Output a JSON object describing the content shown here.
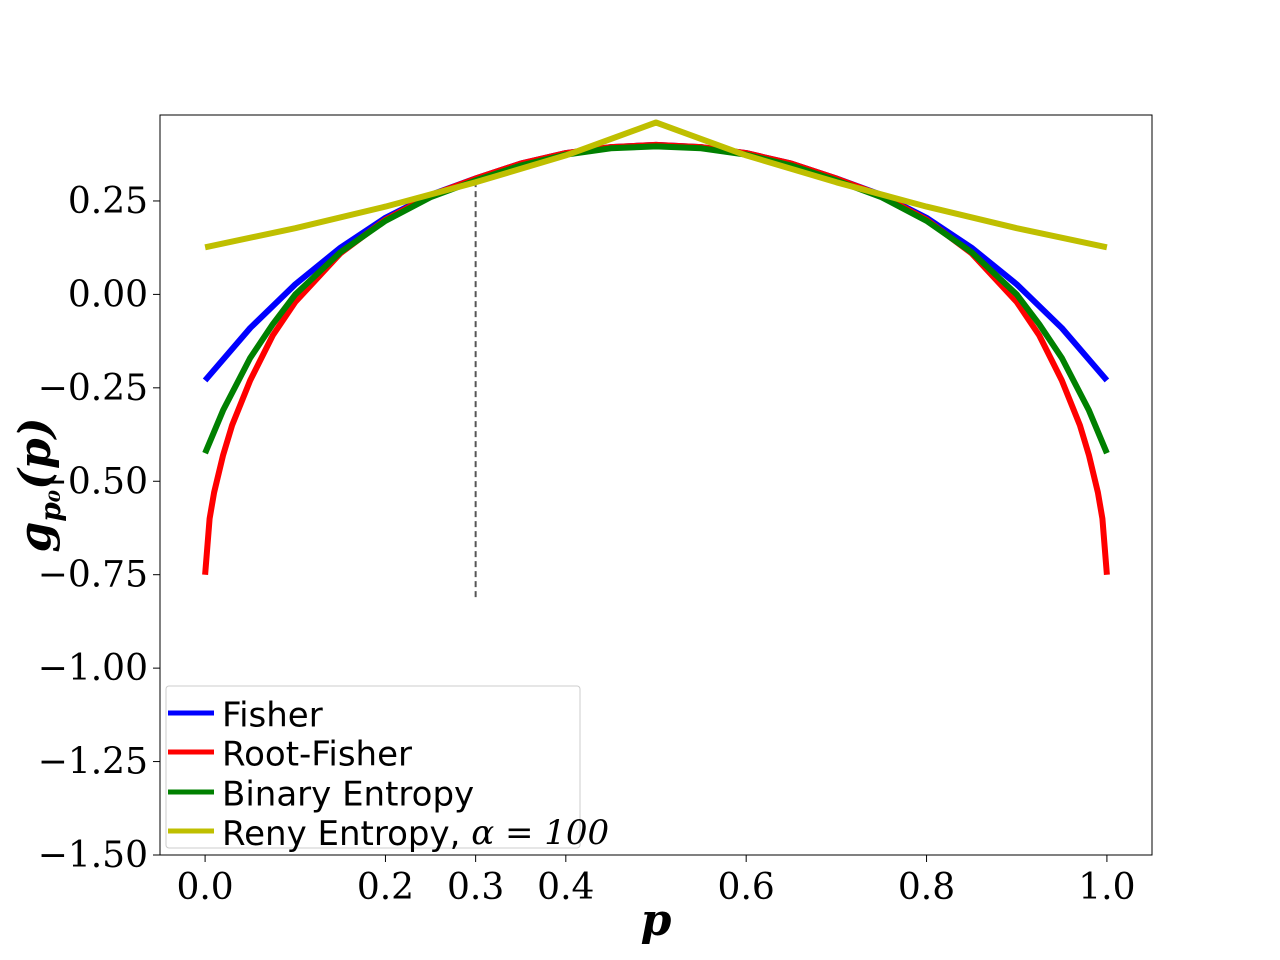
{
  "chart_data": {
    "type": "line",
    "title": "",
    "xlabel": "p",
    "ylabel": "g_{p0}(p)",
    "ylabel_main": "g",
    "ylabel_sub": "p₀",
    "ylabel_arg": "(p)",
    "xlim": [
      -0.05,
      1.05
    ],
    "ylim": [
      -1.5,
      0.48
    ],
    "xticks": [
      0.0,
      0.2,
      0.3,
      0.4,
      0.6,
      0.8,
      1.0
    ],
    "xtick_labels": [
      "0.0",
      "0.2",
      "0.3",
      "0.4",
      "0.6",
      "0.8",
      "1.0"
    ],
    "yticks": [
      0.25,
      0.0,
      -0.25,
      -0.5,
      -0.75,
      -1.0,
      -1.25,
      -1.5
    ],
    "ytick_labels": [
      "0.25",
      "0.00",
      "−0.25",
      "−0.50",
      "−0.75",
      "−1.00",
      "−1.25",
      "−1.50"
    ],
    "grid": false,
    "legend_position": "bottom-left",
    "vline": {
      "x": 0.3,
      "y_from": -0.81,
      "y_to": 0.3,
      "style": "dashed",
      "color": "#555555"
    },
    "series": [
      {
        "name": "Fisher",
        "color": "#0000ff",
        "x": [
          0.0,
          0.05,
          0.1,
          0.15,
          0.2,
          0.25,
          0.3,
          0.35,
          0.4,
          0.45,
          0.5,
          0.55,
          0.6,
          0.65,
          0.7,
          0.75,
          0.8,
          0.85,
          0.9,
          0.95,
          1.0
        ],
        "y": [
          -0.23,
          -0.09,
          0.027,
          0.125,
          0.205,
          0.266,
          0.31,
          0.35,
          0.378,
          0.394,
          0.4,
          0.394,
          0.378,
          0.35,
          0.31,
          0.266,
          0.205,
          0.125,
          0.027,
          -0.09,
          -0.23
        ]
      },
      {
        "name": "Root-Fisher",
        "color": "#ff0000",
        "x": [
          0.0,
          0.005,
          0.01,
          0.02,
          0.03,
          0.05,
          0.075,
          0.1,
          0.15,
          0.2,
          0.25,
          0.3,
          0.35,
          0.4,
          0.45,
          0.5,
          0.55,
          0.6,
          0.65,
          0.7,
          0.75,
          0.8,
          0.85,
          0.9,
          0.925,
          0.95,
          0.97,
          0.98,
          0.99,
          0.995,
          1.0
        ],
        "y": [
          -0.75,
          -0.6,
          -0.53,
          -0.43,
          -0.35,
          -0.23,
          -0.11,
          -0.02,
          0.11,
          0.2,
          0.265,
          0.31,
          0.35,
          0.378,
          0.394,
          0.4,
          0.394,
          0.378,
          0.35,
          0.31,
          0.265,
          0.2,
          0.11,
          -0.02,
          -0.11,
          -0.23,
          -0.35,
          -0.43,
          -0.53,
          -0.6,
          -0.75
        ]
      },
      {
        "name": "Binary Entropy",
        "color": "#008000",
        "x": [
          0.0,
          0.02,
          0.05,
          0.075,
          0.1,
          0.15,
          0.2,
          0.25,
          0.3,
          0.35,
          0.4,
          0.45,
          0.5,
          0.55,
          0.6,
          0.65,
          0.7,
          0.75,
          0.8,
          0.85,
          0.9,
          0.925,
          0.95,
          0.98,
          1.0
        ],
        "y": [
          -0.425,
          -0.31,
          -0.17,
          -0.08,
          0.0,
          0.113,
          0.197,
          0.26,
          0.305,
          0.345,
          0.374,
          0.391,
          0.396,
          0.391,
          0.374,
          0.345,
          0.305,
          0.26,
          0.197,
          0.113,
          0.0,
          -0.08,
          -0.17,
          -0.31,
          -0.425
        ]
      },
      {
        "name": "Reny Entropy, α = 100",
        "name_prefix": "Reny Entropy, ",
        "name_math": "α = 100",
        "color": "#bfbf00",
        "x": [
          0.0,
          0.1,
          0.2,
          0.3,
          0.4,
          0.5,
          0.6,
          0.7,
          0.8,
          0.9,
          1.0
        ],
        "y": [
          0.126,
          0.177,
          0.235,
          0.3,
          0.372,
          0.46,
          0.372,
          0.3,
          0.235,
          0.177,
          0.126
        ]
      }
    ]
  }
}
